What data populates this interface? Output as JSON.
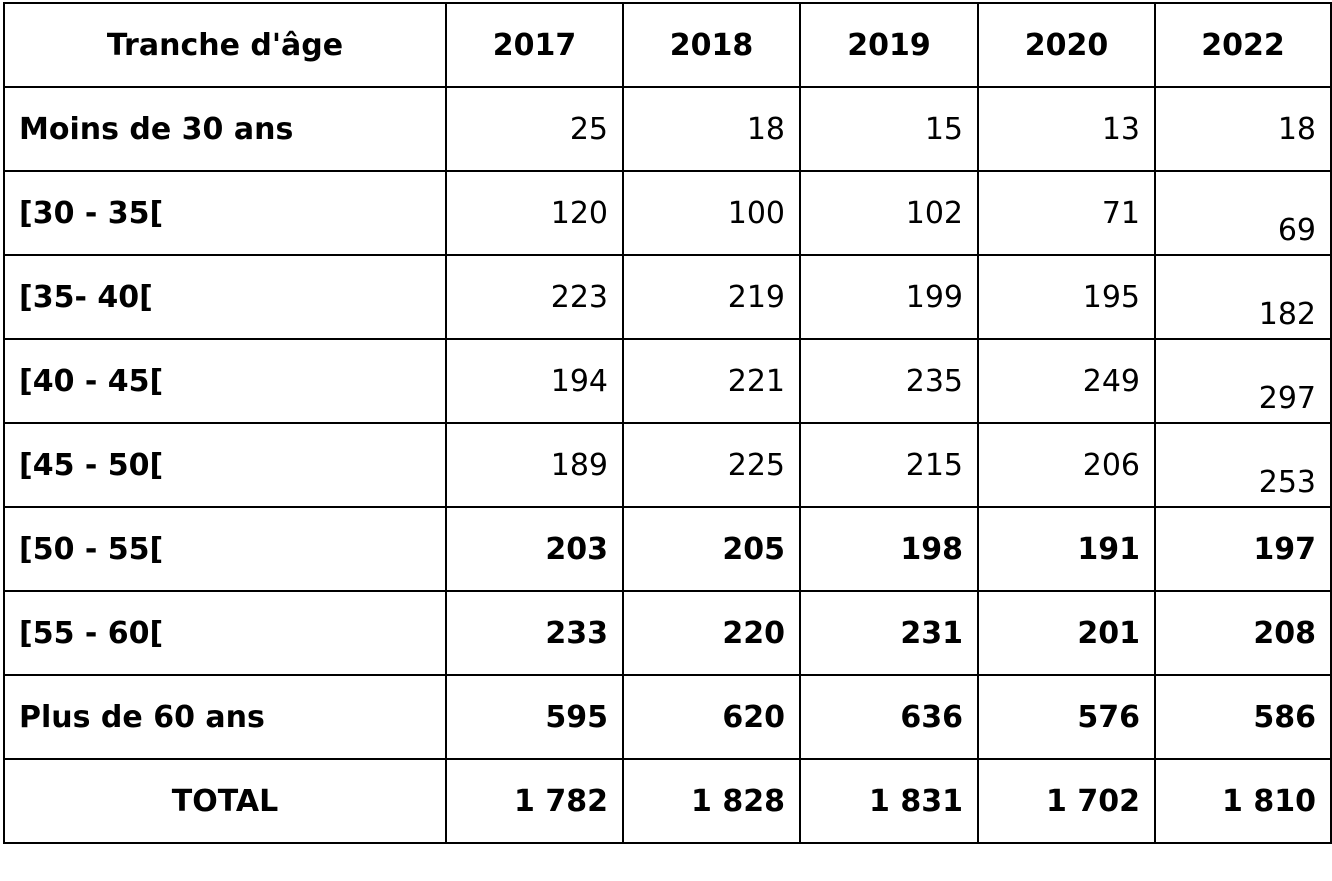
{
  "table": {
    "headers": [
      "Tranche d'âge",
      "2017",
      "2018",
      "2019",
      "2020",
      "2022"
    ],
    "rows": [
      {
        "label": "Moins de 30 ans",
        "values": [
          "25",
          "18",
          "15",
          "13",
          "18"
        ],
        "bold": false
      },
      {
        "label": "[30 - 35[",
        "values": [
          "120",
          "100",
          "102",
          "71",
          "69"
        ],
        "bold": false
      },
      {
        "label": "[35- 40[",
        "values": [
          "223",
          "219",
          "199",
          "195",
          "182"
        ],
        "bold": false
      },
      {
        "label": "[40 - 45[",
        "values": [
          "194",
          "221",
          "235",
          "249",
          "297"
        ],
        "bold": false
      },
      {
        "label": "[45 - 50[",
        "values": [
          "189",
          "225",
          "215",
          "206",
          "253"
        ],
        "bold": false
      },
      {
        "label": "[50 - 55[",
        "values": [
          "203",
          "205",
          "198",
          "191",
          "197"
        ],
        "bold": true
      },
      {
        "label": "[55 - 60[",
        "values": [
          "233",
          "220",
          "231",
          "201",
          "208"
        ],
        "bold": true
      },
      {
        "label": "Plus de 60 ans",
        "values": [
          "595",
          "620",
          "636",
          "576",
          "586"
        ],
        "bold": true
      }
    ],
    "total": {
      "label": "TOTAL",
      "values": [
        "1 782",
        "1 828",
        "1 831",
        "1 702",
        "1 810"
      ]
    }
  }
}
